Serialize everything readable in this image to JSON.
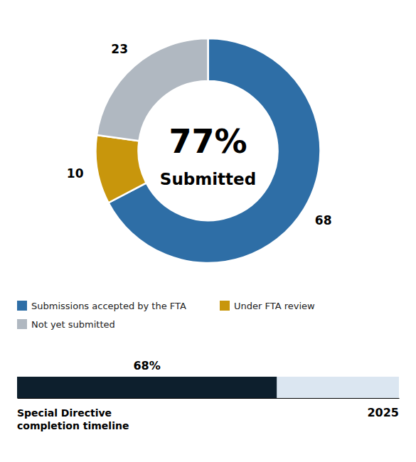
{
  "chart_data": [
    {
      "type": "pie",
      "categories": [
        "Submissions accepted by the FTA",
        "Under FTA review",
        "Not yet submitted"
      ],
      "values": [
        68,
        10,
        23
      ],
      "colors": [
        "#2E6EA6",
        "#C8960C",
        "#B0B8C1"
      ],
      "data_labels": true,
      "legend": "bottom",
      "annotations": [
        "77%",
        "Submitted"
      ]
    },
    {
      "type": "bar",
      "orientation": "horizontal",
      "values": [
        68
      ],
      "value_labels": [
        "68%"
      ],
      "data_labels": true,
      "color": "#0D1F2D",
      "xlim": [
        0,
        100
      ],
      "tick_labels": false,
      "annotations": [
        "Special Directive\ncompletion timeline",
        "2025"
      ]
    }
  ]
}
